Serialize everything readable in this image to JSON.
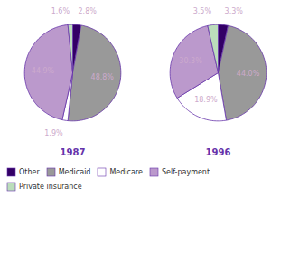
{
  "chart_data": [
    {
      "type": "pie",
      "title": "1987",
      "categories": [
        "Other",
        "Medicaid",
        "Medicare",
        "Self-payment",
        "Private insurance"
      ],
      "values": [
        2.8,
        48.8,
        1.9,
        44.9,
        1.6
      ],
      "value_labels": [
        "2.8%",
        "48.8%",
        "1.9%",
        "44.9%",
        "1.6%"
      ],
      "colors": [
        "#330066",
        "#999999",
        "#ffffff",
        "#bb99cc",
        "#bbddbb"
      ],
      "data_labels": true,
      "legend": "bottom"
    },
    {
      "type": "pie",
      "title": "1996",
      "categories": [
        "Other",
        "Medicaid",
        "Medicare",
        "Self-payment",
        "Private insurance"
      ],
      "values": [
        3.3,
        44.0,
        18.9,
        30.3,
        3.5
      ],
      "value_labels": [
        "3.3%",
        "44.0%",
        "18.9%",
        "30.3%",
        "3.5%"
      ],
      "colors": [
        "#330066",
        "#999999",
        "#ffffff",
        "#bb99cc",
        "#bbddbb"
      ],
      "data_labels": true,
      "legend": "bottom"
    }
  ]
}
